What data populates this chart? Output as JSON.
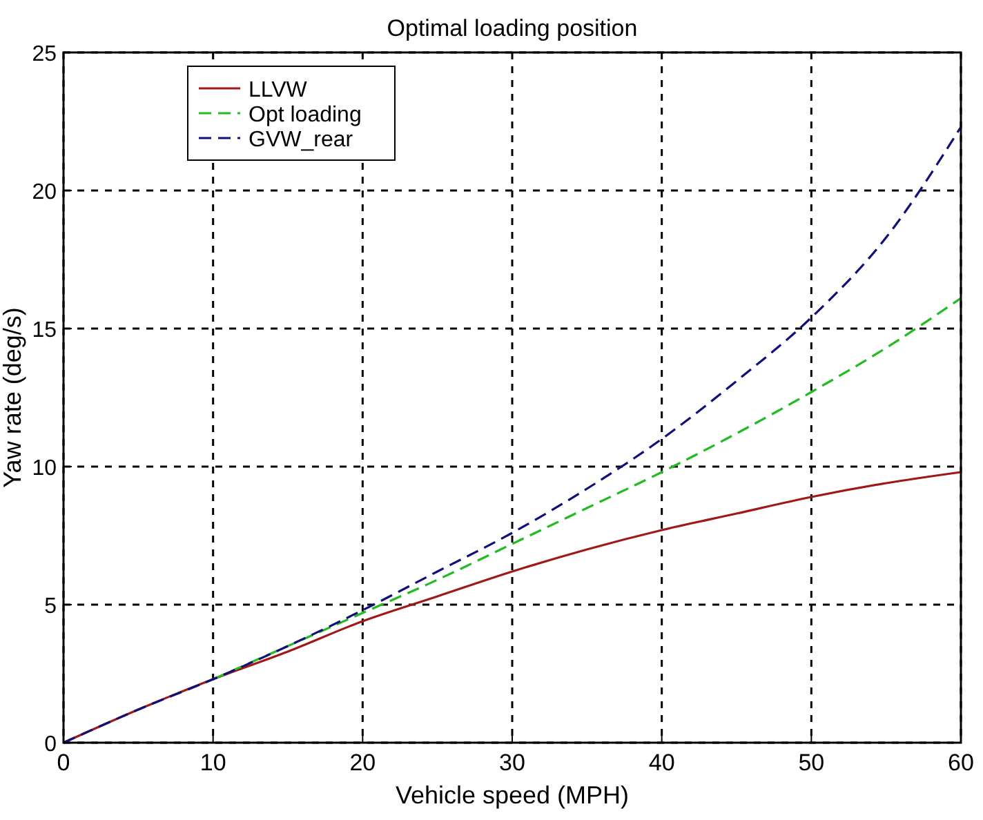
{
  "chart_data": {
    "type": "line",
    "title": "Optimal loading position",
    "xlabel": "Vehicle speed (MPH)",
    "ylabel": "Yaw rate (deg/s)",
    "xlim": [
      0,
      60
    ],
    "xticks": [
      0,
      10,
      20,
      30,
      40,
      50,
      60
    ],
    "ylim": [
      0,
      25
    ],
    "yticks": [
      0,
      5,
      10,
      15,
      20,
      25
    ],
    "grid": true,
    "legend": "top left",
    "marker": "none",
    "series": [
      {
        "name": "LLVW",
        "color": "#a01818",
        "line_style": "solid",
        "x": [
          0,
          5,
          10,
          15,
          20,
          25,
          30,
          35,
          40,
          45,
          50,
          55,
          60
        ],
        "values": [
          0,
          1.2,
          2.3,
          3.3,
          4.4,
          5.3,
          6.2,
          7.0,
          7.7,
          8.3,
          8.9,
          9.4,
          9.8
        ]
      },
      {
        "name": "Opt loading",
        "color": "#22bb22",
        "line_style": "dashed",
        "x": [
          10,
          15,
          20,
          25,
          30,
          35,
          40,
          45,
          50,
          55,
          60
        ],
        "values": [
          2.3,
          3.5,
          4.7,
          5.9,
          7.2,
          8.5,
          9.8,
          11.2,
          12.7,
          14.3,
          16.1
        ]
      },
      {
        "name": "GVW_rear",
        "color": "#10107a",
        "line_style": "dashed",
        "x": [
          0,
          5,
          10,
          15,
          20,
          25,
          30,
          35,
          40,
          45,
          50,
          55,
          60
        ],
        "values": [
          0,
          1.2,
          2.3,
          3.5,
          4.8,
          6.2,
          7.6,
          9.2,
          11.0,
          13.1,
          15.4,
          18.3,
          22.3
        ]
      }
    ]
  }
}
